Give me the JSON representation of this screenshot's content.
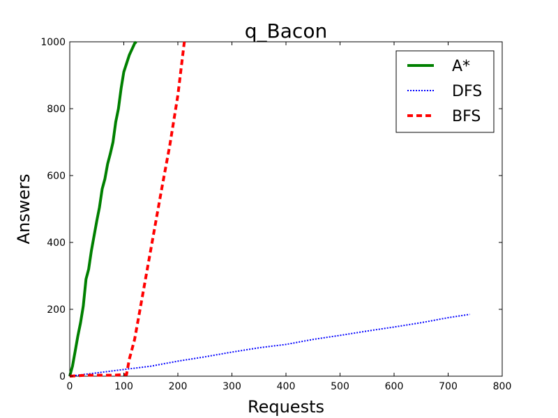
{
  "chart_data": {
    "type": "line",
    "title": "q_Bacon",
    "xlabel": "Requests",
    "ylabel": "Answers",
    "xlim": [
      0,
      800
    ],
    "ylim": [
      0,
      1000
    ],
    "xticks": [
      0,
      100,
      200,
      300,
      400,
      500,
      600,
      700,
      800
    ],
    "yticks": [
      0,
      200,
      400,
      600,
      800,
      1000
    ],
    "grid": false,
    "legend_position": "top-right",
    "series": [
      {
        "name": "A*",
        "color": "#008000",
        "style": "solid",
        "points": [
          [
            0,
            0
          ],
          [
            5,
            30
          ],
          [
            10,
            75
          ],
          [
            15,
            120
          ],
          [
            20,
            160
          ],
          [
            25,
            210
          ],
          [
            30,
            290
          ],
          [
            35,
            320
          ],
          [
            40,
            375
          ],
          [
            45,
            420
          ],
          [
            50,
            465
          ],
          [
            55,
            505
          ],
          [
            60,
            560
          ],
          [
            65,
            590
          ],
          [
            70,
            635
          ],
          [
            75,
            665
          ],
          [
            80,
            700
          ],
          [
            85,
            760
          ],
          [
            90,
            800
          ],
          [
            95,
            860
          ],
          [
            100,
            910
          ],
          [
            110,
            960
          ],
          [
            120,
            995
          ],
          [
            123,
            1000
          ]
        ]
      },
      {
        "name": "DFS",
        "color": "#0000ff",
        "style": "dotted",
        "points": [
          [
            0,
            0
          ],
          [
            50,
            10
          ],
          [
            100,
            20
          ],
          [
            150,
            30
          ],
          [
            200,
            45
          ],
          [
            250,
            58
          ],
          [
            300,
            72
          ],
          [
            350,
            85
          ],
          [
            400,
            95
          ],
          [
            450,
            110
          ],
          [
            500,
            122
          ],
          [
            550,
            135
          ],
          [
            600,
            147
          ],
          [
            650,
            160
          ],
          [
            700,
            175
          ],
          [
            740,
            185
          ]
        ]
      },
      {
        "name": "BFS",
        "color": "#ff0000",
        "style": "dashed",
        "points": [
          [
            0,
            0
          ],
          [
            30,
            3
          ],
          [
            60,
            3
          ],
          [
            80,
            3
          ],
          [
            105,
            5
          ],
          [
            110,
            50
          ],
          [
            120,
            110
          ],
          [
            130,
            200
          ],
          [
            150,
            380
          ],
          [
            170,
            560
          ],
          [
            185,
            690
          ],
          [
            200,
            840
          ],
          [
            212,
            1000
          ]
        ]
      }
    ]
  }
}
